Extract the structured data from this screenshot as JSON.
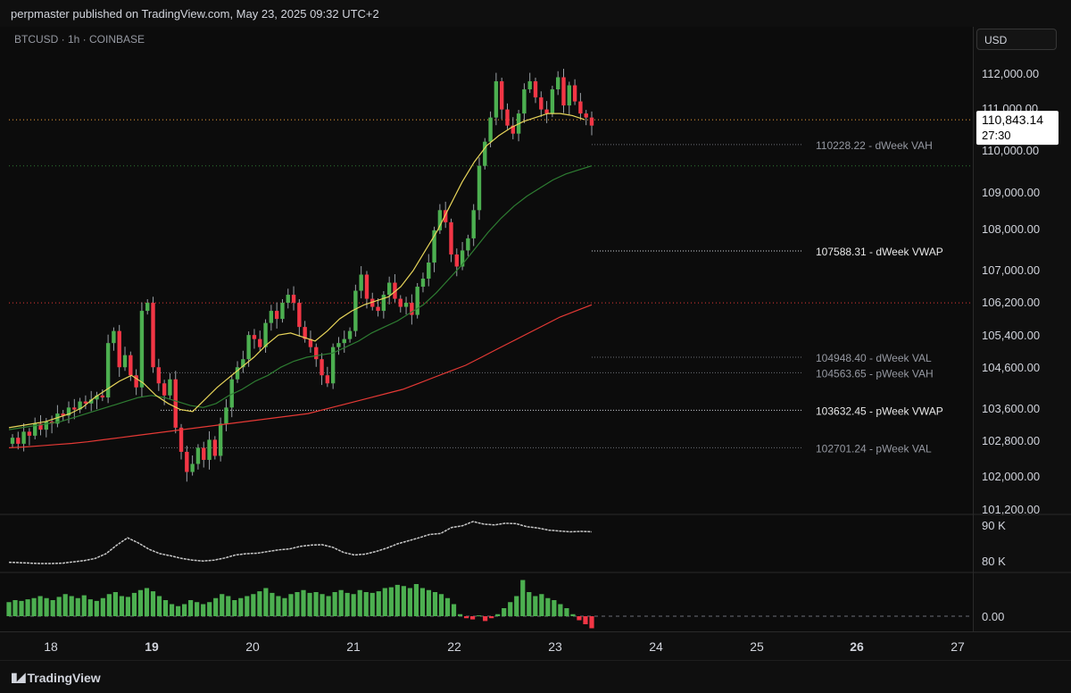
{
  "header": {
    "published": "perpmaster published on TradingView.com, May 23, 2025 09:32 UTC+2"
  },
  "symbol": "BTCUSD · 1h · COINBASE",
  "currency_button": "USD",
  "last_price": {
    "price": "110,843.14",
    "countdown": "27:30"
  },
  "footer": {
    "brand": "TradingView"
  },
  "colors": {
    "up": "#4caf50",
    "down": "#f23645",
    "ema_fast": "#e8d55a",
    "ema_mid": "#2e7d32",
    "ema_slow": "#e53935",
    "bg": "#0c0c0c",
    "axis_text": "#d1d4dc"
  },
  "chart_data": {
    "type": "line",
    "title": "",
    "price_axis": {
      "ticks": [
        "112,000.00",
        "111,000.00",
        "110,000.00",
        "109,000.00",
        "108,000.00",
        "107,000.00",
        "106,200.00",
        "105,400.00",
        "104,600.00",
        "103,600.00",
        "102,800.00",
        "102,000.00",
        "101,200.00"
      ],
      "range": [
        101200,
        112600
      ]
    },
    "time_axis": {
      "labels": [
        "18",
        "19",
        "20",
        "21",
        "22",
        "23",
        "24",
        "25",
        "26",
        "27"
      ],
      "bold": [
        "19",
        "26"
      ]
    },
    "levels": [
      {
        "value": 110228.22,
        "label": "110228.22 - dWeek VAH",
        "style": "dotted",
        "emphasis": false
      },
      {
        "value": 107588.31,
        "label": "107588.31 - dWeek VWAP",
        "style": "dotted",
        "emphasis": true
      },
      {
        "value": 104948.4,
        "label": "104948.40 - dWeek VAL",
        "style": "dotted",
        "emphasis": false
      },
      {
        "value": 104563.65,
        "label": "104563.65 - pWeek VAH",
        "style": "dotted",
        "emphasis": false
      },
      {
        "value": 103632.45,
        "label": "103632.45 - pWeek VWAP",
        "style": "dotted",
        "emphasis": true
      },
      {
        "value": 102701.24,
        "label": "102701.24 - pWeek VAL",
        "style": "dotted",
        "emphasis": false
      }
    ],
    "horizontal_lines": [
      {
        "value": 110843.14,
        "color": "#f2a33a"
      },
      {
        "value": 109700,
        "color": "#2e7d32"
      },
      {
        "value": 106300,
        "color": "#e53935"
      }
    ],
    "ohlc_path": [
      102950,
      102800,
      103100,
      103000,
      103300,
      103150,
      103350,
      103300,
      103550,
      103500,
      103700,
      103650,
      103850,
      103800,
      103900,
      104000,
      103950,
      105300,
      105600,
      104700,
      105000,
      104500,
      104200,
      106100,
      106300,
      104700,
      104300,
      104000,
      104400,
      103200,
      102600,
      102100,
      102300,
      102700,
      102400,
      102900,
      102500,
      103300,
      103700,
      104400,
      104700,
      104900,
      105500,
      105400,
      105200,
      105800,
      106100,
      105900,
      106300,
      106500,
      106300,
      105700,
      105400,
      105200,
      104900,
      104500,
      104300,
      105200,
      105300,
      105400,
      105600,
      106600,
      107000,
      106400,
      106200,
      106100,
      106500,
      106800,
      106400,
      106200,
      106300,
      106000,
      106700,
      106900,
      107300,
      108100,
      108600,
      108300,
      107500,
      107200,
      107600,
      107900,
      108600,
      109700,
      110300,
      110900,
      111800,
      111100,
      110700,
      110500,
      111000,
      111600,
      111800,
      111400,
      111100,
      111000,
      111600,
      111900,
      111200,
      111700,
      111300,
      111000,
      110900,
      110700
    ],
    "ema_fast": [
      103200,
      103250,
      103300,
      103350,
      103450,
      103550,
      103700,
      103950,
      104150,
      104350,
      104500,
      104300,
      104000,
      103800,
      103650,
      103600,
      103900,
      104200,
      104450,
      104700,
      104950,
      105250,
      105500,
      105550,
      105450,
      105350,
      105600,
      105900,
      106100,
      106250,
      106350,
      106450,
      106700,
      107100,
      107600,
      108100,
      108700,
      109300,
      109800,
      110200,
      110450,
      110650,
      110800,
      110900,
      111000,
      111000,
      110950,
      110850
    ],
    "ema_mid": [
      103150,
      103200,
      103250,
      103300,
      103350,
      103450,
      103550,
      103650,
      103750,
      103850,
      103950,
      104000,
      103950,
      103850,
      103750,
      103700,
      103800,
      104000,
      104150,
      104350,
      104500,
      104700,
      104850,
      104950,
      105000,
      105050,
      105200,
      105350,
      105550,
      105700,
      105850,
      106050,
      106250,
      106550,
      106900,
      107250,
      107650,
      108050,
      108400,
      108700,
      108950,
      109150,
      109350,
      109500,
      109600,
      109700
    ],
    "ema_slow": [
      102700,
      102720,
      102750,
      102780,
      102810,
      102850,
      102900,
      102950,
      103000,
      103050,
      103100,
      103150,
      103200,
      103250,
      103300,
      103350,
      103400,
      103450,
      103500,
      103550,
      103650,
      103750,
      103850,
      103950,
      104050,
      104150,
      104300,
      104450,
      104600,
      104750,
      104950,
      105150,
      105350,
      105550,
      105750,
      105950,
      106100,
      106250
    ],
    "oscillator": {
      "ticks": [
        "90 K",
        "80 K"
      ],
      "values": [
        0.05,
        0.04,
        0.03,
        0.02,
        0.02,
        0.03,
        0.06,
        0.09,
        0.14,
        0.25,
        0.45,
        0.62,
        0.5,
        0.35,
        0.25,
        0.2,
        0.14,
        0.1,
        0.08,
        0.1,
        0.15,
        0.22,
        0.25,
        0.26,
        0.3,
        0.34,
        0.36,
        0.42,
        0.45,
        0.46,
        0.4,
        0.28,
        0.22,
        0.24,
        0.3,
        0.38,
        0.48,
        0.55,
        0.62,
        0.7,
        0.72,
        0.86,
        0.9,
        1.0,
        0.94,
        0.92,
        0.96,
        0.95,
        0.88,
        0.85,
        0.8,
        0.78,
        0.76,
        0.77,
        0.76
      ]
    },
    "momentum": {
      "ticks": [
        "0.00"
      ],
      "values": [
        0.35,
        0.4,
        0.38,
        0.42,
        0.45,
        0.5,
        0.45,
        0.4,
        0.48,
        0.55,
        0.5,
        0.45,
        0.52,
        0.42,
        0.38,
        0.45,
        0.55,
        0.6,
        0.5,
        0.48,
        0.58,
        0.65,
        0.7,
        0.62,
        0.5,
        0.4,
        0.3,
        0.25,
        0.3,
        0.4,
        0.35,
        0.3,
        0.35,
        0.45,
        0.55,
        0.5,
        0.4,
        0.45,
        0.5,
        0.55,
        0.62,
        0.7,
        0.58,
        0.5,
        0.45,
        0.55,
        0.6,
        0.65,
        0.58,
        0.6,
        0.55,
        0.5,
        0.6,
        0.65,
        0.58,
        0.55,
        0.65,
        0.6,
        0.58,
        0.62,
        0.7,
        0.72,
        0.78,
        0.75,
        0.7,
        0.8,
        0.7,
        0.65,
        0.6,
        0.55,
        0.45,
        0.3,
        0.05,
        -0.05,
        -0.08,
        0.02,
        -0.12,
        -0.05,
        0.05,
        0.2,
        0.35,
        0.5,
        0.9,
        0.6,
        0.5,
        0.55,
        0.45,
        0.4,
        0.3,
        0.2,
        0.05,
        -0.1,
        -0.2,
        -0.3
      ]
    }
  }
}
